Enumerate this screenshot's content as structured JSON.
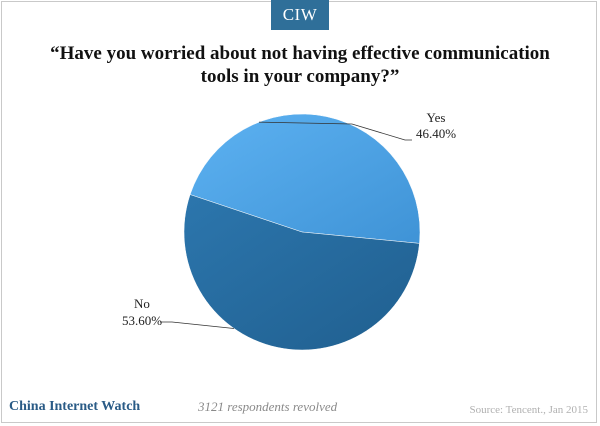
{
  "brand": {
    "badge_text": "CIW"
  },
  "chart_data": {
    "type": "pie",
    "title": "“Have you worried about not having effective communication tools in your company?”",
    "slices": [
      {
        "label": "Yes",
        "value": 46.4,
        "value_label": "46.40%",
        "color": "#4ea6ea"
      },
      {
        "label": "No",
        "value": 53.6,
        "value_label": "53.60%",
        "color": "#266a9c"
      }
    ]
  },
  "footer": {
    "site_name": "China Internet Watch",
    "note": "3121 respondents revolved",
    "source": "Source: Tencent., Jan 2015"
  }
}
